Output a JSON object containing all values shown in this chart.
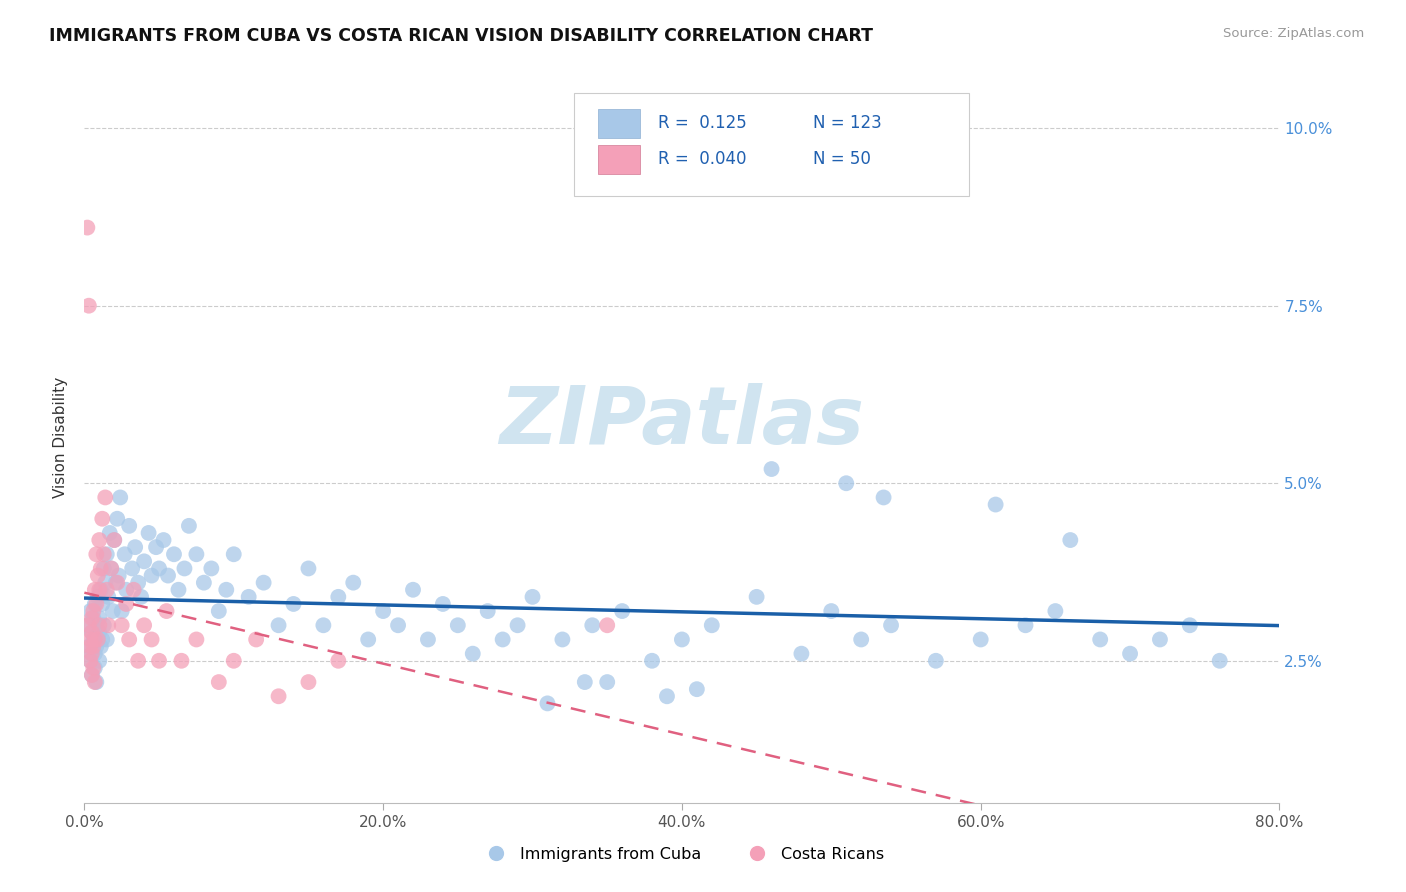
{
  "title": "IMMIGRANTS FROM CUBA VS COSTA RICAN VISION DISABILITY CORRELATION CHART",
  "source": "Source: ZipAtlas.com",
  "ylabel": "Vision Disability",
  "xlim": [
    0,
    0.8
  ],
  "ylim": [
    0.005,
    0.108
  ],
  "yticks": [
    0.025,
    0.05,
    0.075,
    0.1
  ],
  "ytick_labels": [
    "2.5%",
    "5.0%",
    "7.5%",
    "10.0%"
  ],
  "xticks": [
    0.0,
    0.2,
    0.4,
    0.6,
    0.8
  ],
  "xtick_labels": [
    "0.0%",
    "20.0%",
    "40.0%",
    "60.0%",
    "80.0%"
  ],
  "blue_color": "#a8c8e8",
  "pink_color": "#f4a0b8",
  "blue_line_color": "#1a5fa8",
  "pink_line_color": "#e06080",
  "R_blue": 0.125,
  "N_blue": 123,
  "R_pink": 0.04,
  "N_pink": 50,
  "watermark": "ZIPatlas",
  "watermark_color": "#d0e4f0",
  "series1_label": "Immigrants from Cuba",
  "series2_label": "Costa Ricans",
  "blue_x": [
    0.002,
    0.003,
    0.004,
    0.004,
    0.005,
    0.005,
    0.005,
    0.006,
    0.006,
    0.007,
    0.007,
    0.007,
    0.008,
    0.008,
    0.008,
    0.009,
    0.009,
    0.01,
    0.01,
    0.01,
    0.011,
    0.011,
    0.012,
    0.012,
    0.013,
    0.013,
    0.014,
    0.015,
    0.015,
    0.016,
    0.017,
    0.018,
    0.019,
    0.02,
    0.021,
    0.022,
    0.023,
    0.024,
    0.025,
    0.027,
    0.028,
    0.03,
    0.032,
    0.034,
    0.036,
    0.038,
    0.04,
    0.043,
    0.045,
    0.048,
    0.05,
    0.053,
    0.056,
    0.06,
    0.063,
    0.067,
    0.07,
    0.075,
    0.08,
    0.085,
    0.09,
    0.095,
    0.1,
    0.11,
    0.12,
    0.13,
    0.14,
    0.15,
    0.16,
    0.17,
    0.18,
    0.19,
    0.2,
    0.21,
    0.22,
    0.23,
    0.24,
    0.25,
    0.26,
    0.27,
    0.28,
    0.29,
    0.3,
    0.32,
    0.34,
    0.36,
    0.38,
    0.4,
    0.42,
    0.45,
    0.48,
    0.5,
    0.52,
    0.54,
    0.57,
    0.6,
    0.63,
    0.65,
    0.68,
    0.7,
    0.72,
    0.74,
    0.76,
    0.51,
    0.535,
    0.61,
    0.66,
    0.46,
    0.39,
    0.35,
    0.31,
    0.335,
    0.41
  ],
  "blue_y": [
    0.03,
    0.027,
    0.025,
    0.032,
    0.029,
    0.026,
    0.023,
    0.031,
    0.028,
    0.024,
    0.033,
    0.026,
    0.03,
    0.027,
    0.022,
    0.034,
    0.028,
    0.031,
    0.025,
    0.029,
    0.035,
    0.027,
    0.033,
    0.028,
    0.038,
    0.03,
    0.036,
    0.04,
    0.028,
    0.034,
    0.043,
    0.038,
    0.032,
    0.042,
    0.036,
    0.045,
    0.037,
    0.048,
    0.032,
    0.04,
    0.035,
    0.044,
    0.038,
    0.041,
    0.036,
    0.034,
    0.039,
    0.043,
    0.037,
    0.041,
    0.038,
    0.042,
    0.037,
    0.04,
    0.035,
    0.038,
    0.044,
    0.04,
    0.036,
    0.038,
    0.032,
    0.035,
    0.04,
    0.034,
    0.036,
    0.03,
    0.033,
    0.038,
    0.03,
    0.034,
    0.036,
    0.028,
    0.032,
    0.03,
    0.035,
    0.028,
    0.033,
    0.03,
    0.026,
    0.032,
    0.028,
    0.03,
    0.034,
    0.028,
    0.03,
    0.032,
    0.025,
    0.028,
    0.03,
    0.034,
    0.026,
    0.032,
    0.028,
    0.03,
    0.025,
    0.028,
    0.03,
    0.032,
    0.028,
    0.026,
    0.028,
    0.03,
    0.025,
    0.05,
    0.048,
    0.047,
    0.042,
    0.052,
    0.02,
    0.022,
    0.019,
    0.022,
    0.021
  ],
  "pink_x": [
    0.002,
    0.003,
    0.003,
    0.004,
    0.004,
    0.004,
    0.005,
    0.005,
    0.005,
    0.005,
    0.006,
    0.006,
    0.006,
    0.007,
    0.007,
    0.007,
    0.008,
    0.008,
    0.009,
    0.009,
    0.01,
    0.01,
    0.01,
    0.011,
    0.012,
    0.013,
    0.014,
    0.015,
    0.016,
    0.018,
    0.02,
    0.022,
    0.025,
    0.028,
    0.03,
    0.033,
    0.036,
    0.04,
    0.045,
    0.05,
    0.055,
    0.065,
    0.075,
    0.09,
    0.1,
    0.115,
    0.13,
    0.15,
    0.17,
    0.35
  ],
  "pink_y": [
    0.086,
    0.075,
    0.03,
    0.027,
    0.025,
    0.028,
    0.026,
    0.023,
    0.031,
    0.029,
    0.032,
    0.027,
    0.024,
    0.035,
    0.028,
    0.022,
    0.04,
    0.033,
    0.037,
    0.028,
    0.042,
    0.035,
    0.03,
    0.038,
    0.045,
    0.04,
    0.048,
    0.035,
    0.03,
    0.038,
    0.042,
    0.036,
    0.03,
    0.033,
    0.028,
    0.035,
    0.025,
    0.03,
    0.028,
    0.025,
    0.032,
    0.025,
    0.028,
    0.022,
    0.025,
    0.028,
    0.02,
    0.022,
    0.025,
    0.03
  ]
}
